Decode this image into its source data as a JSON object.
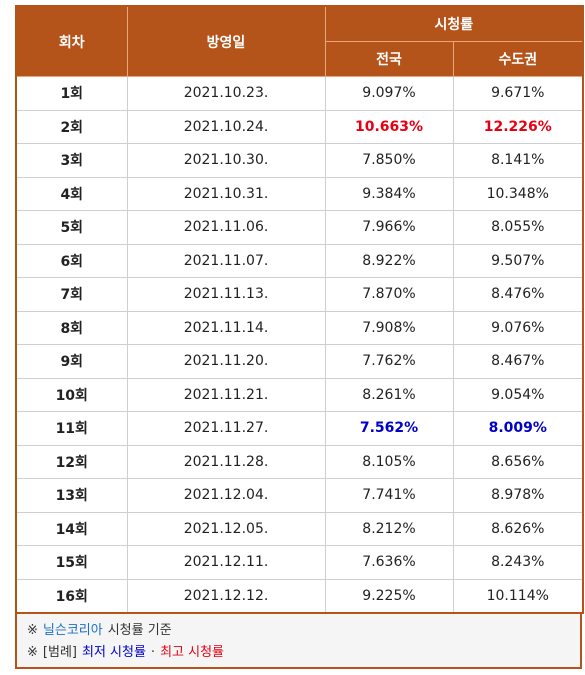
{
  "table": {
    "header": {
      "episode": "회차",
      "date": "방영일",
      "rating": "시청률",
      "nation": "전국",
      "capital": "수도권"
    },
    "rows": [
      {
        "episode": "1회",
        "date": "2021.10.23.",
        "nation": "9.097%",
        "capital": "9.671%"
      },
      {
        "episode": "2회",
        "date": "2021.10.24.",
        "nation": "10.663%",
        "capital": "12.226%",
        "highlight": "#e60012"
      },
      {
        "episode": "3회",
        "date": "2021.10.30.",
        "nation": "7.850%",
        "capital": "8.141%"
      },
      {
        "episode": "4회",
        "date": "2021.10.31.",
        "nation": "9.384%",
        "capital": "10.348%"
      },
      {
        "episode": "5회",
        "date": "2021.11.06.",
        "nation": "7.966%",
        "capital": "8.055%"
      },
      {
        "episode": "6회",
        "date": "2021.11.07.",
        "nation": "8.922%",
        "capital": "9.507%"
      },
      {
        "episode": "7회",
        "date": "2021.11.13.",
        "nation": "7.870%",
        "capital": "8.476%"
      },
      {
        "episode": "8회",
        "date": "2021.11.14.",
        "nation": "7.908%",
        "capital": "9.076%"
      },
      {
        "episode": "9회",
        "date": "2021.11.20.",
        "nation": "7.762%",
        "capital": "8.467%"
      },
      {
        "episode": "10회",
        "date": "2021.11.21.",
        "nation": "8.261%",
        "capital": "9.054%"
      },
      {
        "episode": "11회",
        "date": "2021.11.27.",
        "nation": "7.562%",
        "capital": "8.009%",
        "highlight": "#0000cc"
      },
      {
        "episode": "12회",
        "date": "2021.11.28.",
        "nation": "8.105%",
        "capital": "8.656%"
      },
      {
        "episode": "13회",
        "date": "2021.12.04.",
        "nation": "7.741%",
        "capital": "8.978%"
      },
      {
        "episode": "14회",
        "date": "2021.12.05.",
        "nation": "8.212%",
        "capital": "8.626%"
      },
      {
        "episode": "15회",
        "date": "2021.12.11.",
        "nation": "7.636%",
        "capital": "8.243%"
      },
      {
        "episode": "16회",
        "date": "2021.12.12.",
        "nation": "9.225%",
        "capital": "10.114%"
      }
    ]
  },
  "footer": [
    [
      {
        "text": "※",
        "color": "#333"
      },
      {
        "text": "닐슨코리아",
        "color": "#1a6fc9"
      },
      {
        "text": "시청률 기준",
        "color": "#333"
      }
    ],
    [
      {
        "text": "※",
        "color": "#333"
      },
      {
        "text": "[범례]",
        "color": "#333"
      },
      {
        "text": "최저 시청률",
        "color": "#0000cc"
      },
      {
        "text": "·",
        "color": "#333"
      },
      {
        "text": "최고 시청률",
        "color": "#e60012"
      }
    ]
  ]
}
